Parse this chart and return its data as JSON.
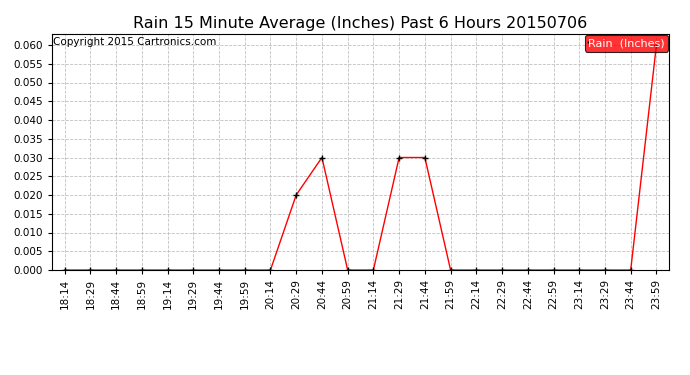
{
  "title": "Rain 15 Minute Average (Inches) Past 6 Hours 20150706",
  "copyright": "Copyright 2015 Cartronics.com",
  "legend_label": "Rain  (Inches)",
  "line_color": "#ff0000",
  "marker_color": "#000000",
  "background_color": "#ffffff",
  "grid_color": "#c0c0c0",
  "ylim": [
    0.0,
    0.063
  ],
  "yticks": [
    0.0,
    0.005,
    0.01,
    0.015,
    0.02,
    0.025,
    0.03,
    0.035,
    0.04,
    0.045,
    0.05,
    0.055,
    0.06
  ],
  "x_labels": [
    "18:14",
    "18:29",
    "18:44",
    "18:59",
    "19:14",
    "19:29",
    "19:44",
    "19:59",
    "20:14",
    "20:29",
    "20:44",
    "20:59",
    "21:14",
    "21:29",
    "21:44",
    "21:59",
    "22:14",
    "22:29",
    "22:44",
    "22:59",
    "23:14",
    "23:29",
    "23:44",
    "23:59"
  ],
  "y_values": [
    0.0,
    0.0,
    0.0,
    0.0,
    0.0,
    0.0,
    0.0,
    0.0,
    0.0,
    0.02,
    0.03,
    0.0,
    0.0,
    0.03,
    0.03,
    0.0,
    0.0,
    0.0,
    0.0,
    0.0,
    0.0,
    0.0,
    0.0,
    0.06
  ],
  "title_fontsize": 11.5,
  "copyright_fontsize": 7.5,
  "tick_fontsize": 7.5,
  "legend_fontsize": 8,
  "fig_width": 6.9,
  "fig_height": 3.75,
  "dpi": 100
}
